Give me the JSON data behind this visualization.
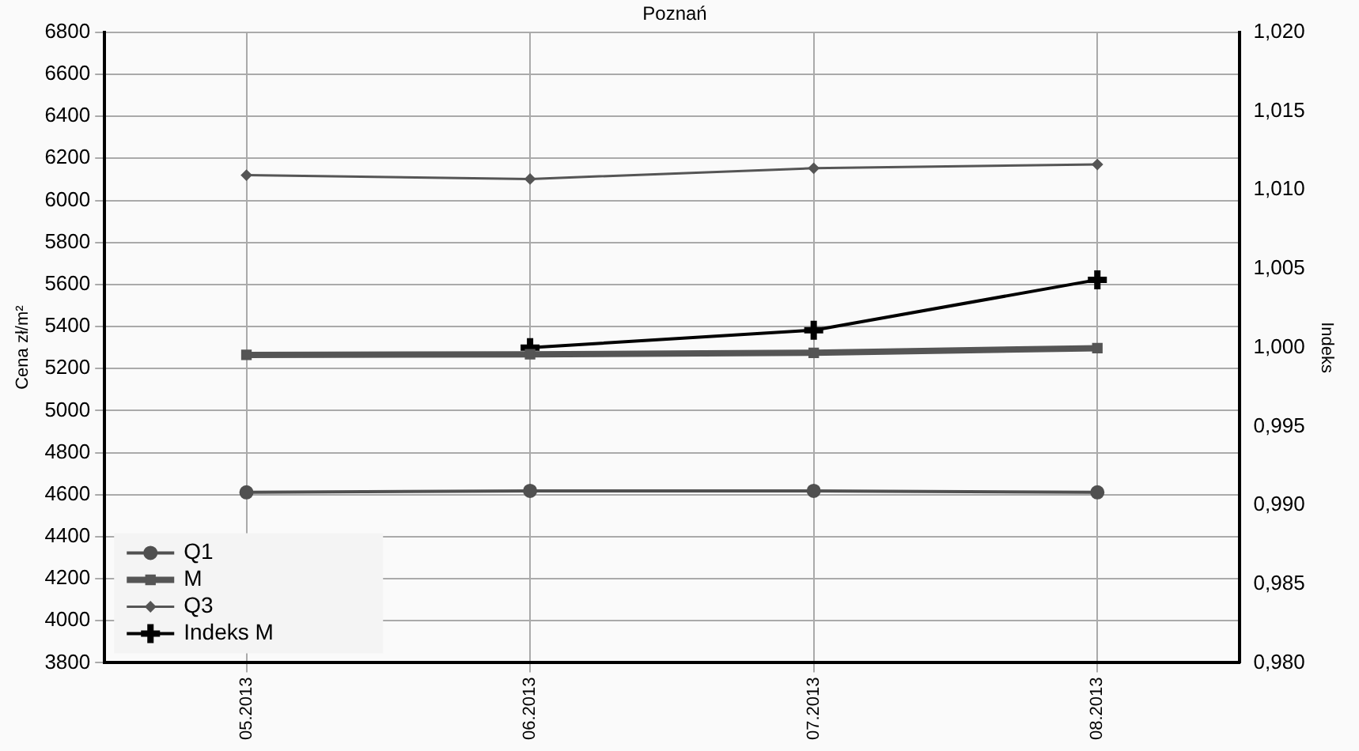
{
  "chart_data": {
    "type": "line",
    "title": "Poznań",
    "ylabel": "Cena zł/m²",
    "y2label": "Indeks",
    "categories": [
      "05.2013",
      "06.2013",
      "07.2013",
      "08.2013"
    ],
    "series": [
      {
        "name": "Q1",
        "color": "#505050",
        "marker": "circle",
        "values": [
          4611,
          4618,
          4618,
          4611
        ]
      },
      {
        "name": "M",
        "color": "#555555",
        "marker": "square",
        "values": [
          5265,
          5268,
          5275,
          5297
        ]
      },
      {
        "name": "Q3",
        "color": "#555555",
        "marker": "diamond",
        "values": [
          6120,
          6102,
          6153,
          6171
        ]
      },
      {
        "name": "Indeks M",
        "color": "#000000",
        "marker": "cross",
        "axis": "y2",
        "values": [
          null,
          1.0,
          1.0011,
          1.0043
        ]
      }
    ],
    "ylim": [
      3800,
      6800
    ],
    "yticks": [
      3800,
      4000,
      4200,
      4400,
      4600,
      4800,
      5000,
      5200,
      5400,
      5600,
      5800,
      6000,
      6200,
      6400,
      6600,
      6800
    ],
    "y2lim": [
      0.98,
      1.02
    ],
    "y2ticks": [
      {
        "value": 0.98,
        "label": "0,980"
      },
      {
        "value": 0.985,
        "label": "0,985"
      },
      {
        "value": 0.99,
        "label": "0,990"
      },
      {
        "value": 0.995,
        "label": "0,995"
      },
      {
        "value": 1.0,
        "label": "1,000"
      },
      {
        "value": 1.005,
        "label": "1,005"
      },
      {
        "value": 1.01,
        "label": "1,010"
      },
      {
        "value": 1.015,
        "label": "1,015"
      },
      {
        "value": 1.02,
        "label": "1,020"
      }
    ],
    "grid": true,
    "legend": "bottom left",
    "line_style": "solid"
  }
}
